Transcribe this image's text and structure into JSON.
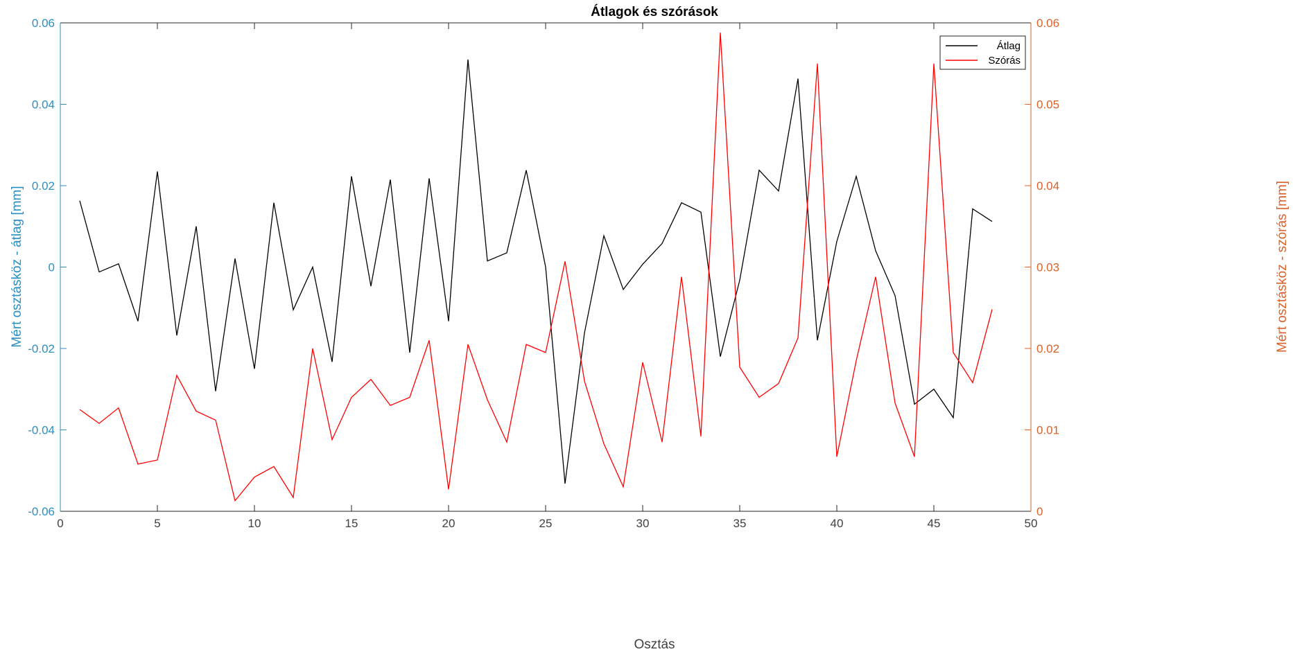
{
  "chart_data": {
    "type": "line",
    "title": "Átlagok és szórások",
    "xlabel": "Osztás",
    "ylabel_left": "Mért osztásköz - átlag [mm]",
    "ylabel_right": "Mért osztásköz - szórás [mm]",
    "xlim": [
      0,
      50
    ],
    "ylim_left": [
      -0.06,
      0.06
    ],
    "ylim_right": [
      0,
      0.06
    ],
    "x_ticks": [
      "0",
      "5",
      "10",
      "15",
      "20",
      "25",
      "30",
      "35",
      "40",
      "45",
      "50"
    ],
    "y_left_ticks": [
      "-0.06",
      "-0.04",
      "-0.02",
      "0",
      "0.02",
      "0.04",
      "0.06"
    ],
    "y_right_ticks": [
      "0",
      "0.01",
      "0.02",
      "0.03",
      "0.04",
      "0.05",
      "0.06"
    ],
    "legend_position": "top-right",
    "grid": false,
    "colors": {
      "left_axis": "#2b8fc4",
      "right_axis": "#d9622b",
      "atlag": "#000000",
      "szoras": "#ff0000"
    },
    "x": [
      1,
      2,
      3,
      4,
      5,
      6,
      7,
      8,
      9,
      10,
      11,
      12,
      13,
      14,
      15,
      16,
      17,
      18,
      19,
      20,
      21,
      22,
      23,
      24,
      25,
      26,
      27,
      28,
      29,
      30,
      31,
      32,
      33,
      34,
      35,
      36,
      37,
      38,
      39,
      40,
      41,
      42,
      43,
      44,
      45,
      46,
      47,
      48
    ],
    "series": [
      {
        "name": "Átlag",
        "axis": "left",
        "values": [
          0.0163,
          -0.0012,
          0.0008,
          -0.0133,
          0.0235,
          -0.0168,
          0.01,
          -0.0305,
          0.0021,
          -0.025,
          0.0158,
          -0.0105,
          0.0,
          -0.0233,
          0.0223,
          -0.0047,
          0.0215,
          -0.021,
          0.0218,
          -0.0133,
          0.051,
          0.0015,
          0.0035,
          0.0238,
          0.0,
          -0.0532,
          -0.0162,
          0.0077,
          -0.0055,
          0.0007,
          0.0058,
          0.0158,
          0.0135,
          -0.022,
          -0.0032,
          0.0238,
          0.0187,
          0.0463,
          -0.018,
          0.0063,
          0.0223,
          0.004,
          -0.007,
          -0.0337,
          -0.03,
          -0.037,
          0.0143,
          0.0112
        ]
      },
      {
        "name": "Szórás",
        "axis": "right",
        "values": [
          0.0125,
          0.0108,
          0.0127,
          0.0058,
          0.0063,
          0.0167,
          0.0123,
          0.0112,
          0.0013,
          0.0042,
          0.0055,
          0.0017,
          0.02,
          0.0088,
          0.014,
          0.0162,
          0.013,
          0.014,
          0.021,
          0.0027,
          0.0205,
          0.0137,
          0.0085,
          0.0205,
          0.0195,
          0.0307,
          0.016,
          0.0083,
          0.003,
          0.0183,
          0.0085,
          0.0288,
          0.0092,
          0.0588,
          0.0177,
          0.014,
          0.0157,
          0.0213,
          0.055,
          0.0067,
          0.0185,
          0.0288,
          0.0133,
          0.0067,
          0.055,
          0.0195,
          0.0158,
          0.0248
        ]
      }
    ]
  }
}
